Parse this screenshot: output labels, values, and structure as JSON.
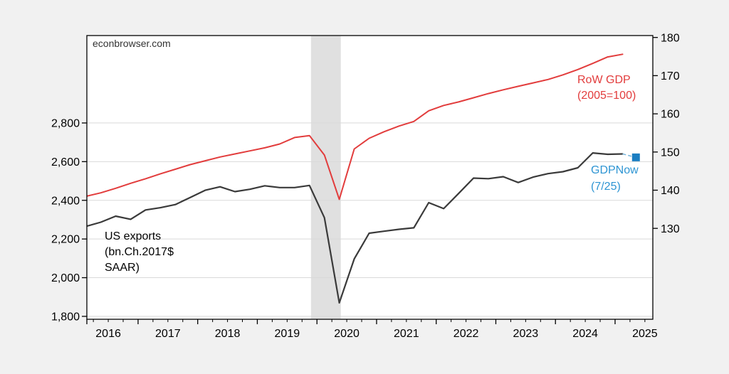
{
  "watermark": "econbrowser.com",
  "chart_data": {
    "type": "line",
    "title": "",
    "background": "#f1f1f1",
    "plot_background": "#ffffff",
    "grid": "horizontal-only",
    "x_axis": {
      "xlim": [
        2016.141,
        2025.633
      ],
      "tick_years": [
        2016,
        2017,
        2018,
        2019,
        2020,
        2021,
        2022,
        2023,
        2024,
        2025
      ],
      "tick_labels": [
        "2016",
        "2017",
        "2018",
        "2019",
        "2020",
        "2021",
        "2022",
        "2023",
        "2024",
        "2025"
      ],
      "minor_tick_step": 0.25
    },
    "left_axis": {
      "ylim": [
        1785,
        3252
      ],
      "tick_values": [
        1800,
        2000,
        2200,
        2400,
        2600,
        2800
      ],
      "tick_labels": [
        "1,800",
        "2,000",
        "2,200",
        "2,400",
        "2,600",
        "2,800"
      ]
    },
    "right_axis": {
      "ylim": [
        106.2,
        180.5
      ],
      "tick_values": [
        130,
        140,
        150,
        160,
        170,
        180
      ],
      "tick_labels": [
        "130",
        "140",
        "150",
        "160",
        "170",
        "180"
      ]
    },
    "recession_band": {
      "from": 2019.9,
      "to": 2020.4,
      "color": "#e0e0e0"
    },
    "series": [
      {
        "name": "US exports (bn.Ch.2017$ SAAR)",
        "axis": "left",
        "color": "#3a3a3a",
        "stroke_width": 2.2,
        "x_start": 2016.125,
        "x_step": 0.25,
        "values": [
          2265,
          2287,
          2318,
          2302,
          2350,
          2362,
          2378,
          2415,
          2452,
          2470,
          2445,
          2457,
          2475,
          2466,
          2466,
          2477,
          2310,
          1870,
          2097,
          2230,
          2240,
          2250,
          2258,
          2388,
          2357,
          2435,
          2515,
          2512,
          2522,
          2492,
          2520,
          2538,
          2548,
          2568,
          2645,
          2638,
          2640
        ]
      },
      {
        "name": "RoW GDP (2005=100)",
        "axis": "right",
        "color": "#e23c3c",
        "stroke_width": 2,
        "x_start": 2016.125,
        "x_step": 0.25,
        "values": [
          138.4,
          139.3,
          140.5,
          141.8,
          143.0,
          144.3,
          145.5,
          146.7,
          147.7,
          148.7,
          149.5,
          150.3,
          151.1,
          152.1,
          153.8,
          154.3,
          149.2,
          137.6,
          150.8,
          153.6,
          155.3,
          156.8,
          158.0,
          160.8,
          162.2,
          163.1,
          164.2,
          165.3,
          166.3,
          167.2,
          168.1,
          169.0,
          170.2,
          171.6,
          173.2,
          174.9,
          175.6
        ]
      },
      {
        "name": "GDPNow (7/25)",
        "axis": "left",
        "marker": "square",
        "marker_size": 11,
        "color": "#1b7ec2",
        "x": 2025.35,
        "value": 2622,
        "connector": {
          "from_x": 2025.125,
          "from_value": 2640,
          "color": "#74b4dc",
          "dashed": true
        }
      }
    ],
    "annotations": [
      {
        "id": "us-exports-label",
        "lines": [
          "US exports",
          "(bn.Ch.2017$",
          "SAAR)"
        ],
        "color": "#000000",
        "x": 147,
        "y": 337,
        "line_height": 22,
        "font_size": 16
      },
      {
        "id": "row-gdp-label",
        "lines": [
          "RoW GDP",
          "(2005=100)"
        ],
        "color": "#e23c3c",
        "x": 811,
        "y": 117,
        "line_height": 22,
        "font_size": 16
      },
      {
        "id": "gdpnow-label",
        "lines": [
          "GDPNow",
          "(7/25)"
        ],
        "color": "#2e95d3",
        "x": 830,
        "y": 244,
        "line_height": 23,
        "font_size": 16
      }
    ]
  }
}
